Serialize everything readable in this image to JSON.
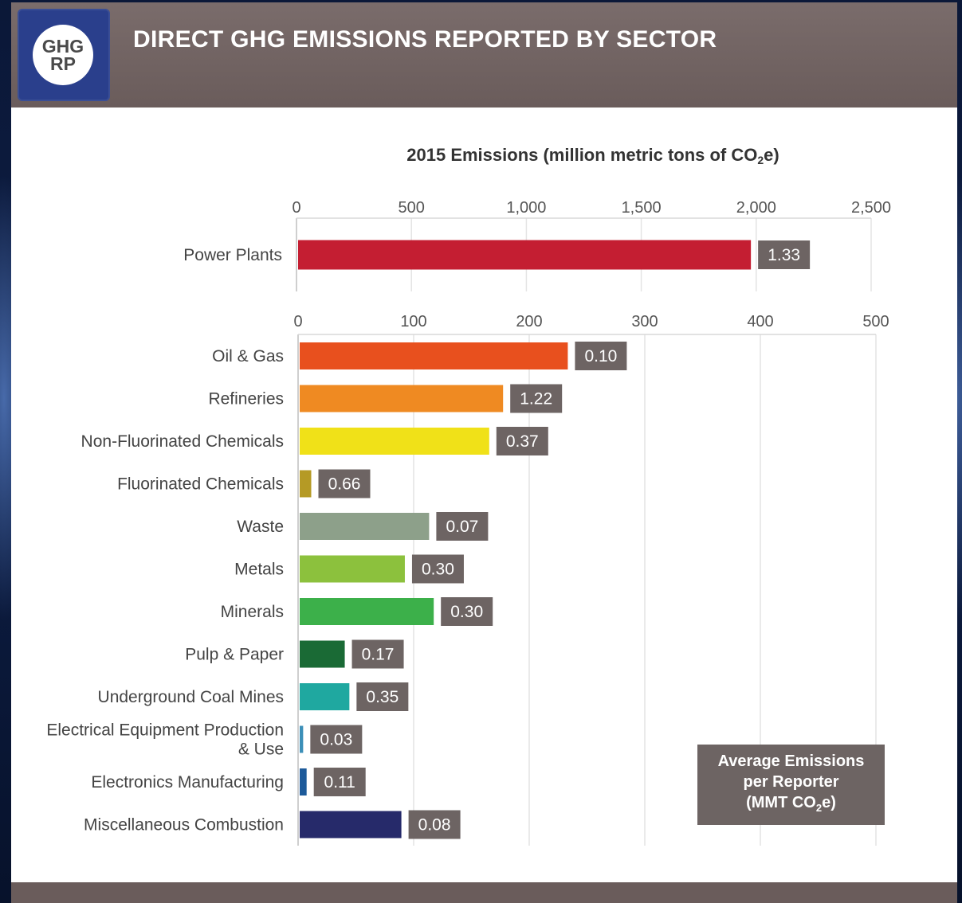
{
  "header": {
    "logo_line1": "GHG",
    "logo_line2": "RP",
    "title": "DIRECT GHG EMISSIONS REPORTED BY SECTOR"
  },
  "legend": {
    "line1": "Average Emissions",
    "line2": "per Reporter",
    "line3_prefix": "(MMT CO",
    "line3_sub": "2",
    "line3_suffix": "e)"
  },
  "chart_data": [
    {
      "type": "bar",
      "orientation": "horizontal",
      "title_prefix": "2015 Emissions (million metric tons of CO",
      "title_sub": "2",
      "title_suffix": "e)",
      "xlim": [
        0,
        2500
      ],
      "ticks": [
        0,
        500,
        1000,
        1500,
        2000,
        2500
      ],
      "tick_labels": [
        "0",
        "500",
        "1,000",
        "1,500",
        "2,000",
        "2,500"
      ],
      "gridlines": true,
      "categories": [
        "Power Plants"
      ],
      "values": [
        1970
      ],
      "colors": [
        "#c41e32"
      ],
      "avg_emissions_labels": [
        "1.33"
      ]
    },
    {
      "type": "bar",
      "orientation": "horizontal",
      "xlim": [
        0,
        500
      ],
      "ticks": [
        0,
        100,
        200,
        300,
        400,
        500
      ],
      "tick_labels": [
        "0",
        "100",
        "200",
        "300",
        "400",
        "500"
      ],
      "gridlines": true,
      "categories": [
        "Oil & Gas",
        "Refineries",
        "Non-Fluorinated Chemicals",
        "Fluorinated Chemicals",
        "Waste",
        "Metals",
        "Minerals",
        "Pulp & Paper",
        "Underground Coal Mines",
        "Electrical Equipment Production & Use",
        "Electronics Manufacturing",
        "Miscellaneous Combustion"
      ],
      "category_lines": [
        [
          "Oil & Gas"
        ],
        [
          "Refineries"
        ],
        [
          "Non-Fluorinated Chemicals"
        ],
        [
          "Fluorinated Chemicals"
        ],
        [
          "Waste"
        ],
        [
          "Metals"
        ],
        [
          "Minerals"
        ],
        [
          "Pulp & Paper"
        ],
        [
          "Underground Coal Mines"
        ],
        [
          "Electrical Equipment Production",
          "& Use"
        ],
        [
          "Electronics Manufacturing"
        ],
        [
          "Miscellaneous Combustion"
        ]
      ],
      "values": [
        232,
        176,
        164,
        10,
        112,
        91,
        116,
        39,
        43,
        3,
        6,
        88
      ],
      "colors": [
        "#e8501e",
        "#ef8a22",
        "#f0e118",
        "#b59a25",
        "#8da08a",
        "#8cc13d",
        "#3cb04a",
        "#1a6a35",
        "#1fa8a0",
        "#3c8fb8",
        "#1d5a9a",
        "#262a6a"
      ],
      "avg_emissions_labels": [
        "0.10",
        "1.22",
        "0.37",
        "0.66",
        "0.07",
        "0.30",
        "0.30",
        "0.17",
        "0.35",
        "0.03",
        "0.11",
        "0.08"
      ]
    }
  ]
}
